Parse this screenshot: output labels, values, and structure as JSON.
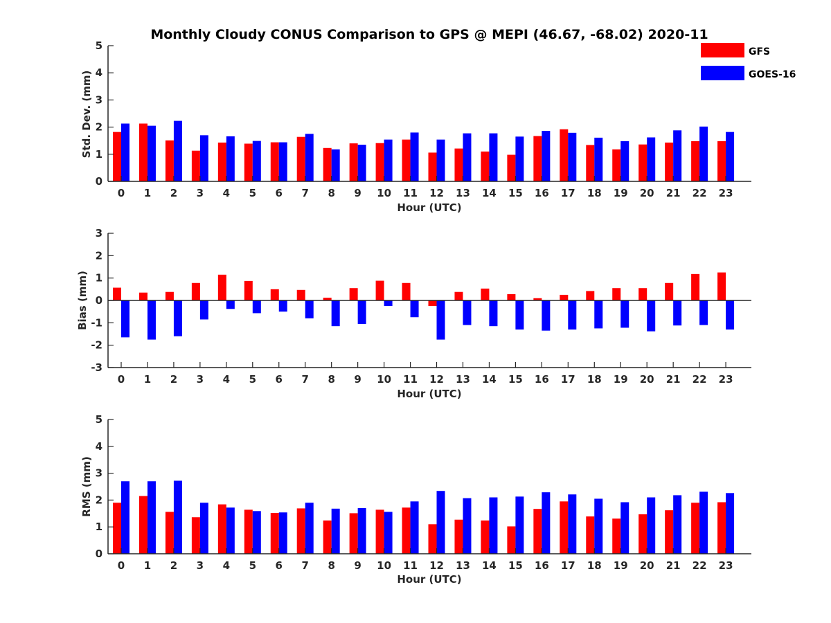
{
  "chart_data": [
    {
      "type": "bar",
      "title": "Monthly Cloudy CONUS Comparison to GPS @ MEPI (46.67, -68.02) 2020-11",
      "xlabel": "Hour (UTC)",
      "ylabel": "Std. Dev. (mm)",
      "ylim": [
        0,
        5
      ],
      "yticks": [
        0,
        1,
        2,
        3,
        4,
        5
      ],
      "grid": false,
      "legend": "top-right",
      "categories": [
        "0",
        "1",
        "2",
        "3",
        "4",
        "5",
        "6",
        "7",
        "8",
        "9",
        "10",
        "11",
        "12",
        "13",
        "14",
        "15",
        "16",
        "17",
        "18",
        "19",
        "20",
        "21",
        "22",
        "23"
      ],
      "series": [
        {
          "name": "GFS",
          "color": "#ff0000",
          "values": [
            1.82,
            2.13,
            1.51,
            1.13,
            1.43,
            1.39,
            1.44,
            1.64,
            1.23,
            1.4,
            1.41,
            1.54,
            1.06,
            1.21,
            1.1,
            0.98,
            1.67,
            1.92,
            1.34,
            1.18,
            1.36,
            1.43,
            1.48,
            1.48
          ]
        },
        {
          "name": "GOES-16",
          "color": "#0000ff",
          "values": [
            2.13,
            2.05,
            2.23,
            1.7,
            1.66,
            1.49,
            1.44,
            1.75,
            1.18,
            1.35,
            1.54,
            1.8,
            1.54,
            1.77,
            1.77,
            1.65,
            1.86,
            1.79,
            1.61,
            1.48,
            1.62,
            1.88,
            2.02,
            1.82
          ]
        }
      ]
    },
    {
      "type": "bar",
      "xlabel": "Hour (UTC)",
      "ylabel": "Bias (mm)",
      "ylim": [
        -3,
        3
      ],
      "yticks": [
        -3,
        -2,
        -1,
        0,
        1,
        2,
        3
      ],
      "grid": false,
      "categories": [
        "0",
        "1",
        "2",
        "3",
        "4",
        "5",
        "6",
        "7",
        "8",
        "9",
        "10",
        "11",
        "12",
        "13",
        "14",
        "15",
        "16",
        "17",
        "18",
        "19",
        "20",
        "21",
        "22",
        "23"
      ],
      "series": [
        {
          "name": "GFS",
          "color": "#ff0000",
          "values": [
            0.57,
            0.35,
            0.38,
            0.78,
            1.15,
            0.87,
            0.5,
            0.47,
            0.12,
            0.55,
            0.88,
            0.78,
            -0.25,
            0.38,
            0.53,
            0.28,
            0.1,
            0.25,
            0.42,
            0.55,
            0.55,
            0.78,
            1.18,
            1.25
          ]
        },
        {
          "name": "GOES-16",
          "color": "#0000ff",
          "values": [
            -1.65,
            -1.75,
            -1.6,
            -0.85,
            -0.38,
            -0.57,
            -0.5,
            -0.8,
            -1.15,
            -1.05,
            -0.25,
            -0.75,
            -1.75,
            -1.1,
            -1.15,
            -1.3,
            -1.35,
            -1.3,
            -1.25,
            -1.22,
            -1.38,
            -1.12,
            -1.1,
            -1.3
          ]
        }
      ]
    },
    {
      "type": "bar",
      "xlabel": "Hour (UTC)",
      "ylabel": "RMS (mm)",
      "ylim": [
        0,
        5
      ],
      "yticks": [
        0,
        1,
        2,
        3,
        4,
        5
      ],
      "grid": false,
      "categories": [
        "0",
        "1",
        "2",
        "3",
        "4",
        "5",
        "6",
        "7",
        "8",
        "9",
        "10",
        "11",
        "12",
        "13",
        "14",
        "15",
        "16",
        "17",
        "18",
        "19",
        "20",
        "21",
        "22",
        "23"
      ],
      "series": [
        {
          "name": "GFS",
          "color": "#ff0000",
          "values": [
            1.9,
            2.15,
            1.56,
            1.36,
            1.84,
            1.64,
            1.52,
            1.69,
            1.24,
            1.51,
            1.64,
            1.72,
            1.1,
            1.27,
            1.24,
            1.02,
            1.67,
            1.95,
            1.39,
            1.31,
            1.47,
            1.62,
            1.9,
            1.92
          ]
        },
        {
          "name": "GOES-16",
          "color": "#0000ff",
          "values": [
            2.7,
            2.7,
            2.72,
            1.9,
            1.72,
            1.59,
            1.54,
            1.9,
            1.68,
            1.7,
            1.56,
            1.95,
            2.34,
            2.07,
            2.1,
            2.13,
            2.29,
            2.21,
            2.05,
            1.92,
            2.1,
            2.18,
            2.31,
            2.26
          ]
        }
      ]
    }
  ]
}
